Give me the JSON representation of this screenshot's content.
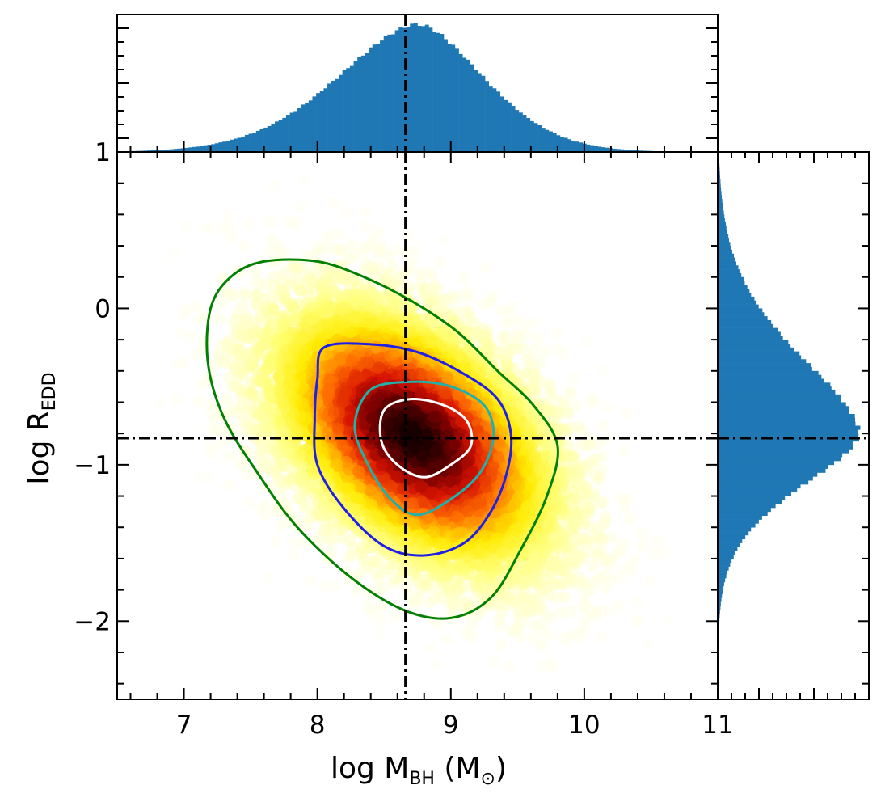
{
  "chart_data": {
    "type": "scatter",
    "subtype": "2d-density-with-marginal-histograms",
    "xlabel": {
      "prefix": "log M",
      "sub": "BH",
      "unit_open": " (M",
      "unit_sub": "⊙",
      "unit_close": ")"
    },
    "ylabel": {
      "prefix": "log R",
      "sub": "EDD"
    },
    "xlim": [
      6.5,
      11.0
    ],
    "ylim": [
      -2.5,
      1.0
    ],
    "x_ticks": [
      "7",
      "8",
      "9",
      "10",
      "11"
    ],
    "x_tick_values": [
      7,
      8,
      9,
      10,
      11
    ],
    "y_ticks": [
      "−2",
      "−1",
      "0",
      "1"
    ],
    "y_tick_values": [
      -2,
      -1,
      0,
      1
    ],
    "median_x": 8.66,
    "median_y": -0.83,
    "density_center": {
      "x": 8.72,
      "y": -0.82
    },
    "contours": [
      {
        "level": "outer",
        "color": "#008000",
        "points": [
          [
            7.35,
            0.2
          ],
          [
            7.6,
            0.3
          ],
          [
            8.0,
            0.3
          ],
          [
            8.35,
            0.2
          ],
          [
            8.7,
            0.05
          ],
          [
            9.05,
            -0.15
          ],
          [
            9.35,
            -0.4
          ],
          [
            9.62,
            -0.62
          ],
          [
            9.8,
            -0.88
          ],
          [
            9.72,
            -1.2
          ],
          [
            9.52,
            -1.55
          ],
          [
            9.3,
            -1.85
          ],
          [
            9.0,
            -1.98
          ],
          [
            8.65,
            -1.93
          ],
          [
            8.25,
            -1.72
          ],
          [
            7.85,
            -1.4
          ],
          [
            7.55,
            -1.05
          ],
          [
            7.3,
            -0.7
          ],
          [
            7.18,
            -0.35
          ],
          [
            7.2,
            0.0
          ]
        ]
      },
      {
        "level": "middle",
        "color": "#1f1fe6",
        "points": [
          [
            8.05,
            -0.25
          ],
          [
            8.4,
            -0.23
          ],
          [
            8.75,
            -0.28
          ],
          [
            9.1,
            -0.42
          ],
          [
            9.35,
            -0.58
          ],
          [
            9.45,
            -0.8
          ],
          [
            9.42,
            -1.05
          ],
          [
            9.3,
            -1.3
          ],
          [
            9.1,
            -1.5
          ],
          [
            8.8,
            -1.58
          ],
          [
            8.5,
            -1.52
          ],
          [
            8.2,
            -1.28
          ],
          [
            8.0,
            -1.0
          ],
          [
            7.98,
            -0.7
          ],
          [
            8.0,
            -0.45
          ]
        ]
      },
      {
        "level": "inner",
        "color": "#20b2aa",
        "points": [
          [
            8.4,
            -0.52
          ],
          [
            8.7,
            -0.47
          ],
          [
            9.0,
            -0.5
          ],
          [
            9.25,
            -0.62
          ],
          [
            9.32,
            -0.82
          ],
          [
            9.22,
            -1.05
          ],
          [
            9.0,
            -1.22
          ],
          [
            8.75,
            -1.32
          ],
          [
            8.55,
            -1.22
          ],
          [
            8.38,
            -1.0
          ],
          [
            8.28,
            -0.75
          ]
        ]
      },
      {
        "level": "core",
        "color": "#ffffff",
        "points": [
          [
            8.5,
            -0.65
          ],
          [
            8.7,
            -0.58
          ],
          [
            8.95,
            -0.62
          ],
          [
            9.12,
            -0.72
          ],
          [
            9.15,
            -0.88
          ],
          [
            9.0,
            -1.0
          ],
          [
            8.8,
            -1.08
          ],
          [
            8.6,
            -1.0
          ],
          [
            8.48,
            -0.85
          ]
        ]
      }
    ],
    "top_histogram": {
      "bin_start": 6.5,
      "bin_end": 11.0,
      "peak_x": 8.75,
      "sigma": 0.5,
      "ymin_label": "1"
    },
    "right_histogram": {
      "peak_y": -0.8,
      "sigma": 0.33
    },
    "colors": {
      "histogram": "#1f77b4",
      "median_line": "#000000"
    }
  }
}
